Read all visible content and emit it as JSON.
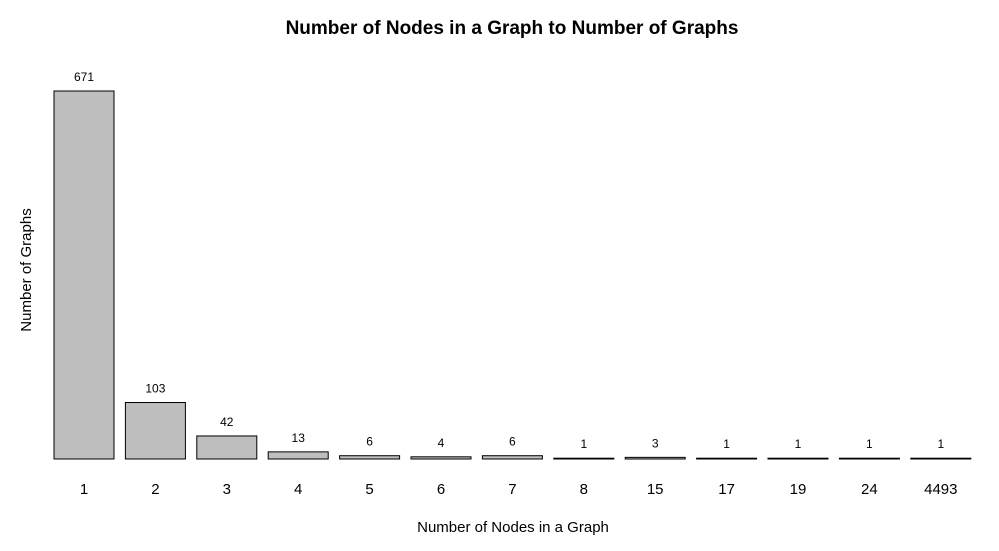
{
  "chart_data": {
    "type": "bar",
    "title": "Number of Nodes in a Graph to Number of Graphs",
    "xlabel": "Number of Nodes in a Graph",
    "ylabel": "Number of Graphs",
    "categories": [
      "1",
      "2",
      "3",
      "4",
      "5",
      "6",
      "7",
      "8",
      "15",
      "17",
      "19",
      "24",
      "4493"
    ],
    "values": [
      671,
      103,
      42,
      13,
      6,
      4,
      6,
      1,
      3,
      1,
      1,
      1,
      1
    ],
    "data_labels": [
      "671",
      "103",
      "42",
      "13",
      "6",
      "4",
      "6",
      "1",
      "3",
      "1",
      "1",
      "1",
      "1"
    ],
    "ylim": [
      0,
      671
    ],
    "grid": false,
    "legend": "none",
    "colors": {
      "bar_fill": "#bebebe",
      "bar_stroke": "#000000",
      "background": "#ffffff"
    }
  }
}
